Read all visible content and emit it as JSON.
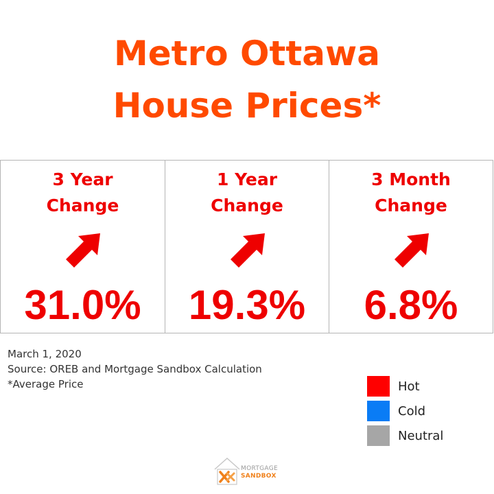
{
  "title": {
    "line1": "Metro Ottawa",
    "line2": "House Prices*"
  },
  "cards": [
    {
      "label_line1": "3 Year",
      "label_line2": "Change",
      "value": "31.0%",
      "trend": "up",
      "trend_icon": "arrow-up-right-icon",
      "status": "Hot"
    },
    {
      "label_line1": "1 Year",
      "label_line2": "Change",
      "value": "19.3%",
      "trend": "up",
      "trend_icon": "arrow-up-right-icon",
      "status": "Hot"
    },
    {
      "label_line1": "3 Month",
      "label_line2": "Change",
      "value": "6.8%",
      "trend": "up",
      "trend_icon": "arrow-up-right-icon",
      "status": "Hot"
    }
  ],
  "notes": {
    "date": "March 1, 2020",
    "source": "Source: OREB and Mortgage Sandbox Calculation",
    "footnote": "*Average Price"
  },
  "legend": [
    {
      "label": "Hot",
      "color": "#ff0000"
    },
    {
      "label": "Cold",
      "color": "#0a7cf5"
    },
    {
      "label": "Neutral",
      "color": "#a6a6a6"
    }
  ],
  "logo": {
    "line1": "MORTGAGE",
    "line2": "SANDBOX",
    "icon": "mortgage-sandbox-logo-icon"
  },
  "colors": {
    "title": "#ff4a00",
    "hot_text": "#ee0000",
    "border": "#b5b5b5"
  }
}
